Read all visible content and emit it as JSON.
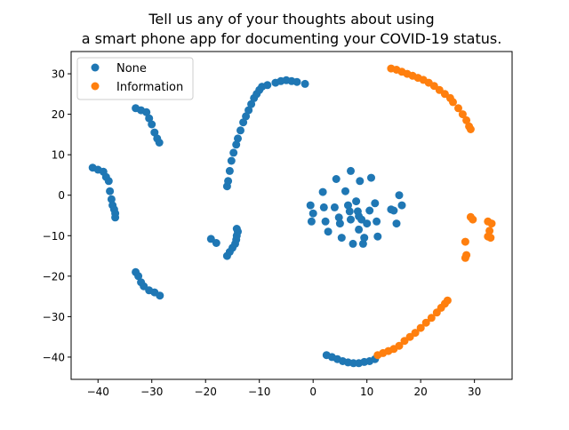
{
  "chart_data": {
    "type": "scatter",
    "title_lines": [
      "Tell us any of your thoughts about using",
      "a smart phone app for documenting your COVID-19 status."
    ],
    "xlabel": "",
    "ylabel": "",
    "xlim": [
      -45,
      37
    ],
    "ylim": [
      -45.5,
      35.5
    ],
    "xticks": [
      -40,
      -30,
      -20,
      -10,
      0,
      10,
      20,
      30
    ],
    "yticks": [
      -40,
      -30,
      -20,
      -10,
      0,
      10,
      20,
      30
    ],
    "grid": false,
    "legend_position": "upper-left",
    "series": [
      {
        "name": "None",
        "color": "#1f77b4",
        "points": [
          [
            -41,
            6.8
          ],
          [
            -40,
            6.3
          ],
          [
            -39,
            5.8
          ],
          [
            -38.5,
            4.5
          ],
          [
            -38,
            3.5
          ],
          [
            -37.8,
            1
          ],
          [
            -37.5,
            -1
          ],
          [
            -37.3,
            -2.5
          ],
          [
            -37,
            -3.5
          ],
          [
            -36.8,
            -4.5
          ],
          [
            -36.8,
            -5.5
          ],
          [
            -33,
            21.5
          ],
          [
            -32,
            21
          ],
          [
            -31,
            20.5
          ],
          [
            -30.5,
            19
          ],
          [
            -30,
            17.5
          ],
          [
            -29.5,
            15.5
          ],
          [
            -29,
            14
          ],
          [
            -28.6,
            13
          ],
          [
            -33,
            -19
          ],
          [
            -32.5,
            -20
          ],
          [
            -32,
            -21.5
          ],
          [
            -31.5,
            -22.5
          ],
          [
            -30.5,
            -23.5
          ],
          [
            -29.5,
            -24
          ],
          [
            -28.5,
            -24.8
          ],
          [
            -19,
            -10.8
          ],
          [
            -18,
            -11.8
          ],
          [
            -16,
            -15
          ],
          [
            -15.5,
            -14
          ],
          [
            -15,
            -13
          ],
          [
            -14.5,
            -12
          ],
          [
            -14.3,
            -11
          ],
          [
            -14.2,
            -10
          ],
          [
            -14,
            -9
          ],
          [
            -14.2,
            -8.3
          ],
          [
            -16,
            2.2
          ],
          [
            -15.8,
            3.5
          ],
          [
            -15.5,
            6
          ],
          [
            -15.2,
            8.5
          ],
          [
            -14.8,
            10.5
          ],
          [
            -14.3,
            12.5
          ],
          [
            -14,
            14
          ],
          [
            -13.5,
            16
          ],
          [
            -13,
            18
          ],
          [
            -12.5,
            19.5
          ],
          [
            -12,
            21
          ],
          [
            -11.5,
            22.5
          ],
          [
            -11,
            24
          ],
          [
            -10.5,
            25
          ],
          [
            -10,
            26
          ],
          [
            -9.5,
            26.8
          ],
          [
            -8.5,
            27.2
          ],
          [
            -7,
            27.8
          ],
          [
            -6,
            28.2
          ],
          [
            -5,
            28.4
          ],
          [
            -4,
            28.2
          ],
          [
            -3,
            28
          ],
          [
            -1.5,
            27.5
          ],
          [
            -0.5,
            -2.5
          ],
          [
            0,
            -4.5
          ],
          [
            -0.3,
            -6.5
          ],
          [
            2,
            -3
          ],
          [
            1.8,
            0.8
          ],
          [
            2.3,
            -6.5
          ],
          [
            2.8,
            -9
          ],
          [
            4,
            -3
          ],
          [
            4.3,
            4
          ],
          [
            4.8,
            -5.5
          ],
          [
            5,
            -7
          ],
          [
            5.3,
            -10.5
          ],
          [
            6,
            1
          ],
          [
            6.5,
            -2.5
          ],
          [
            6.8,
            -4
          ],
          [
            7,
            6
          ],
          [
            7,
            -6
          ],
          [
            7.4,
            -12
          ],
          [
            8,
            -1.5
          ],
          [
            8.3,
            -4
          ],
          [
            8.5,
            -5.2
          ],
          [
            8.5,
            -8.5
          ],
          [
            8.7,
            3.5
          ],
          [
            9,
            -6
          ],
          [
            9.3,
            -12
          ],
          [
            9.5,
            -10.5
          ],
          [
            10,
            -7
          ],
          [
            10.5,
            -3.8
          ],
          [
            10.8,
            4.3
          ],
          [
            11.5,
            -2
          ],
          [
            11.8,
            -6.5
          ],
          [
            12,
            -10.2
          ],
          [
            14.5,
            -3.5
          ],
          [
            15,
            -3.8
          ],
          [
            15.5,
            -7
          ],
          [
            16,
            0
          ],
          [
            16.5,
            -2.5
          ],
          [
            2.5,
            -39.5
          ],
          [
            3.5,
            -40
          ],
          [
            4.5,
            -40.5
          ],
          [
            5.5,
            -41
          ],
          [
            6.5,
            -41.3
          ],
          [
            7.5,
            -41.5
          ],
          [
            8.5,
            -41.5
          ],
          [
            9.5,
            -41.2
          ],
          [
            10.5,
            -41
          ],
          [
            11.5,
            -40.5
          ]
        ]
      },
      {
        "name": "Information",
        "color": "#ff7f0e",
        "points": [
          [
            14.5,
            31.3
          ],
          [
            15.5,
            31
          ],
          [
            16.5,
            30.5
          ],
          [
            17.5,
            30
          ],
          [
            18.5,
            29.5
          ],
          [
            19.5,
            29
          ],
          [
            20.5,
            28.5
          ],
          [
            21.5,
            27.8
          ],
          [
            22.5,
            27
          ],
          [
            23.5,
            26
          ],
          [
            24.5,
            25
          ],
          [
            25.5,
            24
          ],
          [
            26,
            23
          ],
          [
            27,
            21.5
          ],
          [
            27.8,
            20
          ],
          [
            28.5,
            18.5
          ],
          [
            29,
            17
          ],
          [
            29.3,
            16.3
          ],
          [
            29.3,
            -5.4
          ],
          [
            29.7,
            -6
          ],
          [
            32.5,
            -6.5
          ],
          [
            33.2,
            -7
          ],
          [
            32.8,
            -8.8
          ],
          [
            32.5,
            -10.2
          ],
          [
            33,
            -10.5
          ],
          [
            28.3,
            -11.5
          ],
          [
            28.3,
            -15.5
          ],
          [
            28.5,
            -14.8
          ],
          [
            12,
            -39.5
          ],
          [
            13,
            -39
          ],
          [
            14,
            -38.5
          ],
          [
            15,
            -38
          ],
          [
            16,
            -37.2
          ],
          [
            17,
            -36
          ],
          [
            18,
            -35
          ],
          [
            19,
            -34
          ],
          [
            20,
            -32.8
          ],
          [
            21,
            -31.5
          ],
          [
            22,
            -30.3
          ],
          [
            23,
            -29
          ],
          [
            23.8,
            -27.8
          ],
          [
            24.5,
            -26.8
          ],
          [
            25,
            -26
          ]
        ]
      }
    ]
  }
}
